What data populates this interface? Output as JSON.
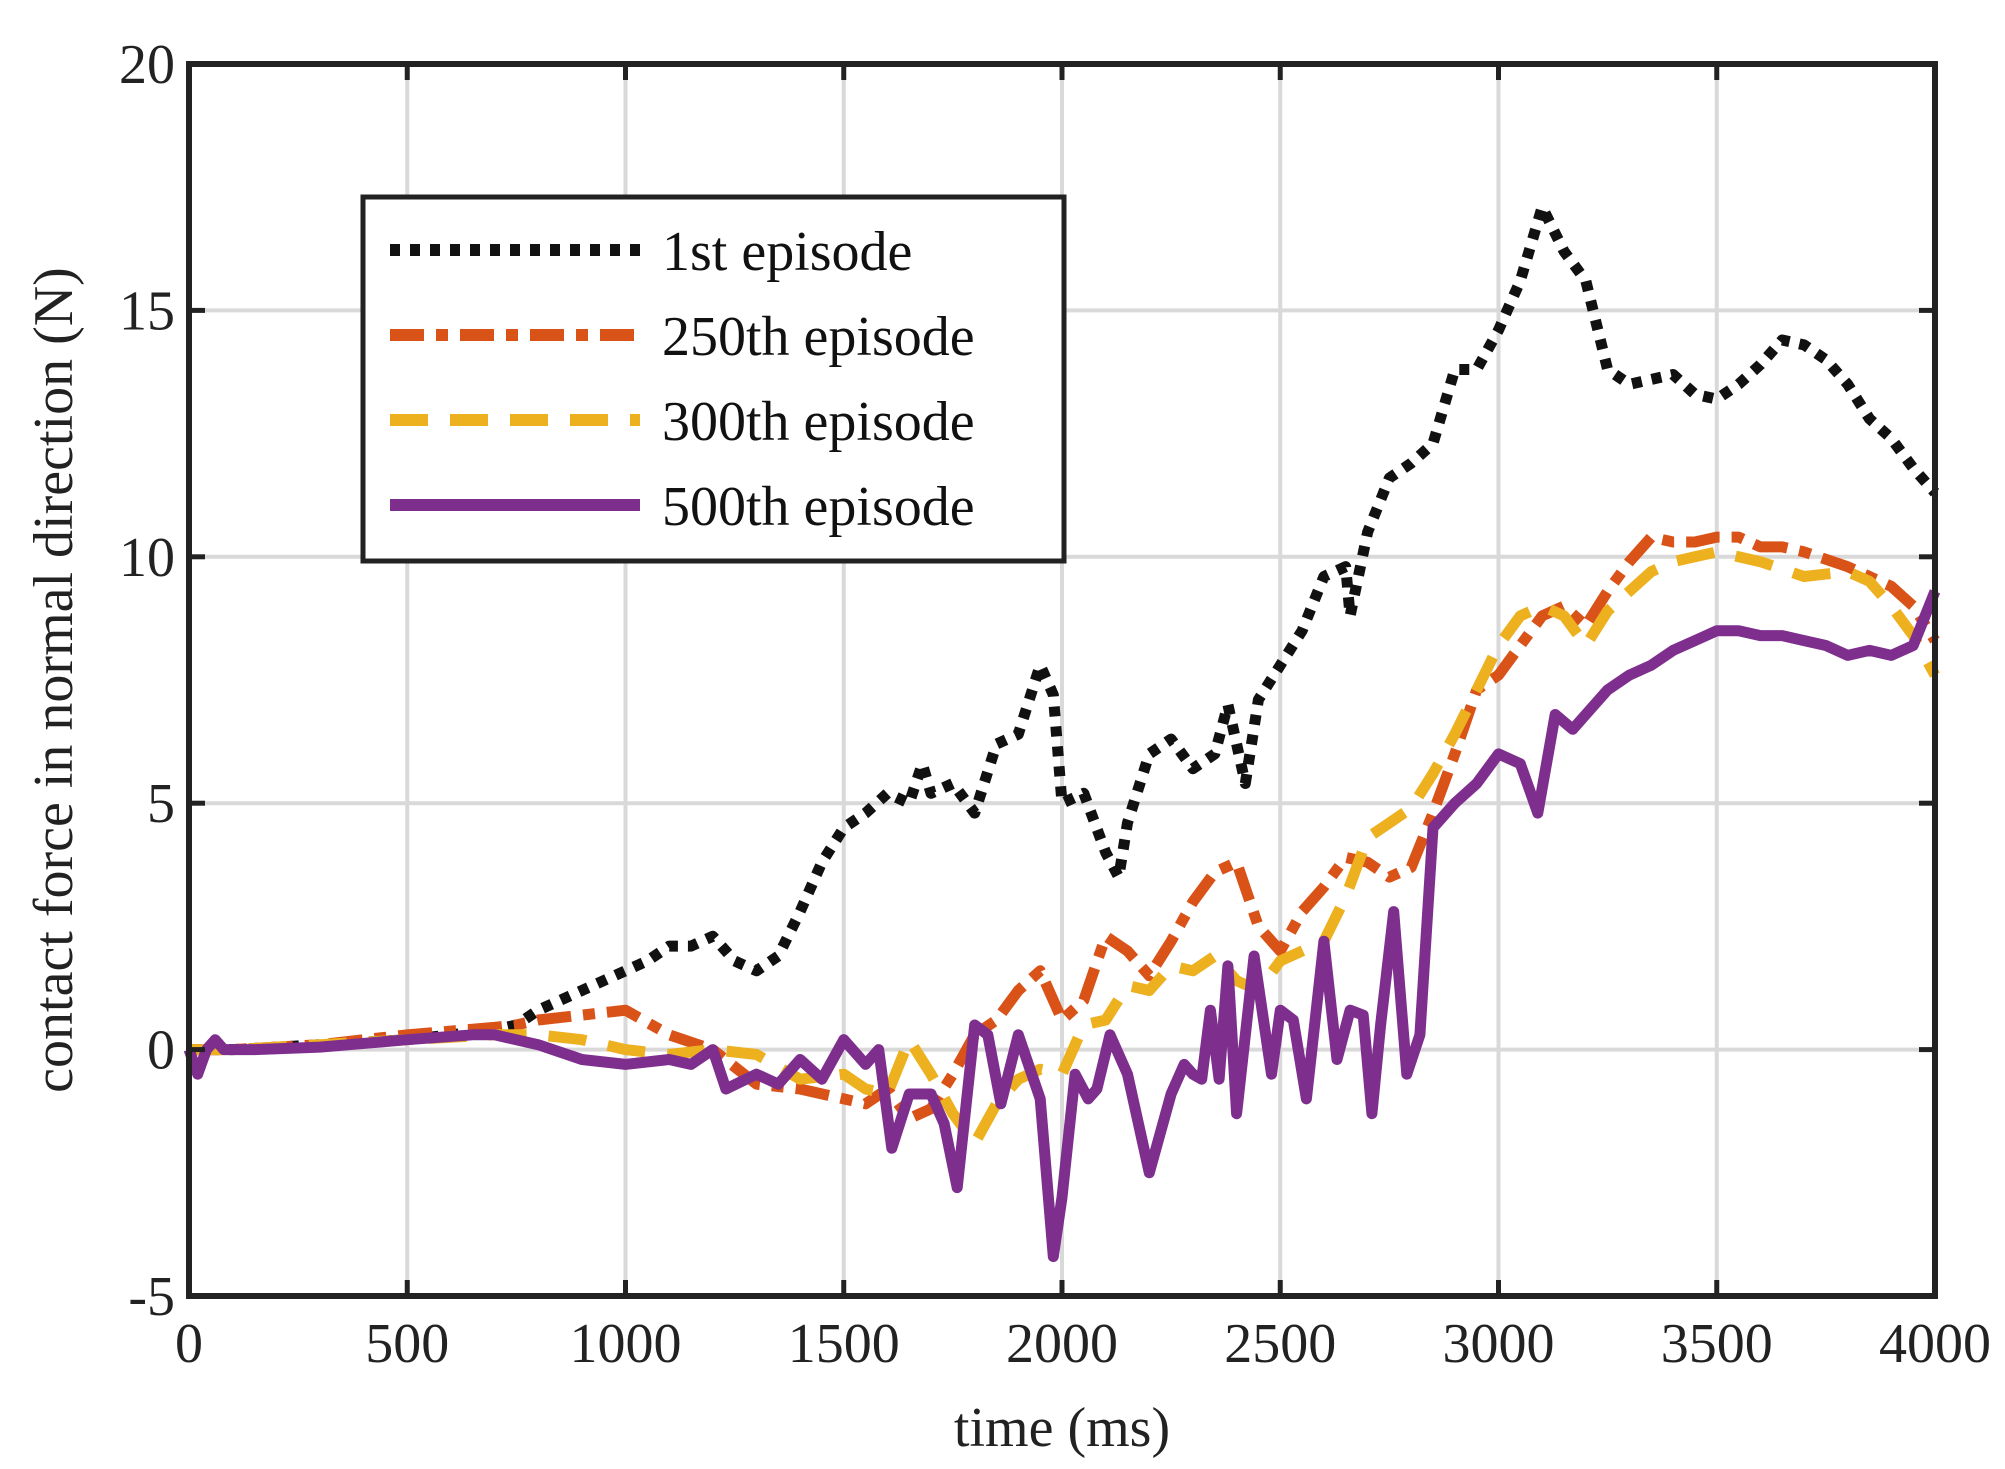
{
  "chart_data": {
    "type": "line",
    "title": "",
    "xlabel": "time (ms)",
    "ylabel": "contact force in normal direction (N)",
    "xlim": [
      0,
      4000
    ],
    "ylim": [
      -5,
      20
    ],
    "grid": true,
    "legend_position": "top-left",
    "x_ticks": [
      0,
      500,
      1000,
      1500,
      2000,
      2500,
      3000,
      3500,
      4000
    ],
    "y_ticks": [
      -5,
      0,
      5,
      10,
      15,
      20
    ],
    "x_tick_labels": [
      "0",
      "500",
      "1000",
      "1500",
      "2000",
      "2500",
      "3000",
      "3500",
      "4000"
    ],
    "y_tick_labels": [
      "-5",
      "0",
      "5",
      "10",
      "15",
      "20"
    ],
    "series": [
      {
        "name": "1st episode",
        "color": "#111111",
        "style": "dotted",
        "points": [
          [
            0,
            0
          ],
          [
            100,
            0
          ],
          [
            300,
            0.1
          ],
          [
            500,
            0.2
          ],
          [
            700,
            0.4
          ],
          [
            750,
            0.5
          ],
          [
            800,
            0.8
          ],
          [
            900,
            1.2
          ],
          [
            1000,
            1.6
          ],
          [
            1050,
            1.8
          ],
          [
            1100,
            2.1
          ],
          [
            1150,
            2.1
          ],
          [
            1200,
            2.3
          ],
          [
            1250,
            1.8
          ],
          [
            1300,
            1.6
          ],
          [
            1350,
            1.9
          ],
          [
            1400,
            2.8
          ],
          [
            1450,
            3.8
          ],
          [
            1500,
            4.5
          ],
          [
            1550,
            4.8
          ],
          [
            1600,
            5.2
          ],
          [
            1650,
            5.0
          ],
          [
            1680,
            5.8
          ],
          [
            1700,
            5.2
          ],
          [
            1750,
            5.4
          ],
          [
            1800,
            4.8
          ],
          [
            1850,
            6.2
          ],
          [
            1900,
            6.4
          ],
          [
            1950,
            7.8
          ],
          [
            1980,
            7.2
          ],
          [
            2000,
            5.0
          ],
          [
            2050,
            5.2
          ],
          [
            2100,
            4.0
          ],
          [
            2130,
            3.5
          ],
          [
            2150,
            4.6
          ],
          [
            2200,
            6.0
          ],
          [
            2250,
            6.3
          ],
          [
            2300,
            5.7
          ],
          [
            2350,
            6.0
          ],
          [
            2380,
            7.0
          ],
          [
            2420,
            5.4
          ],
          [
            2450,
            7.1
          ],
          [
            2500,
            7.8
          ],
          [
            2550,
            8.5
          ],
          [
            2600,
            9.6
          ],
          [
            2650,
            9.8
          ],
          [
            2660,
            8.8
          ],
          [
            2700,
            10.5
          ],
          [
            2750,
            11.6
          ],
          [
            2800,
            11.9
          ],
          [
            2850,
            12.3
          ],
          [
            2880,
            13.2
          ],
          [
            2900,
            13.8
          ],
          [
            2950,
            13.8
          ],
          [
            3000,
            14.6
          ],
          [
            3050,
            15.6
          ],
          [
            3100,
            17.1
          ],
          [
            3150,
            16.2
          ],
          [
            3200,
            15.6
          ],
          [
            3250,
            13.8
          ],
          [
            3300,
            13.5
          ],
          [
            3350,
            13.6
          ],
          [
            3400,
            13.7
          ],
          [
            3450,
            13.3
          ],
          [
            3500,
            13.2
          ],
          [
            3550,
            13.5
          ],
          [
            3600,
            13.9
          ],
          [
            3650,
            14.4
          ],
          [
            3700,
            14.3
          ],
          [
            3750,
            14.0
          ],
          [
            3800,
            13.5
          ],
          [
            3850,
            12.8
          ],
          [
            3900,
            12.4
          ],
          [
            3950,
            11.8
          ],
          [
            4000,
            11.3
          ]
        ]
      },
      {
        "name": "250th episode",
        "color": "#d95319",
        "style": "dashdot",
        "points": [
          [
            0,
            0
          ],
          [
            100,
            0
          ],
          [
            300,
            0.1
          ],
          [
            500,
            0.3
          ],
          [
            700,
            0.45
          ],
          [
            750,
            0.5
          ],
          [
            800,
            0.6
          ],
          [
            900,
            0.7
          ],
          [
            1000,
            0.8
          ],
          [
            1100,
            0.3
          ],
          [
            1200,
            0.0
          ],
          [
            1300,
            -0.7
          ],
          [
            1400,
            -0.8
          ],
          [
            1500,
            -1.0
          ],
          [
            1550,
            -1.1
          ],
          [
            1600,
            -0.8
          ],
          [
            1650,
            -1.4
          ],
          [
            1700,
            -1.2
          ],
          [
            1750,
            -0.5
          ],
          [
            1800,
            0.3
          ],
          [
            1850,
            0.6
          ],
          [
            1900,
            1.2
          ],
          [
            1950,
            1.6
          ],
          [
            2000,
            0.6
          ],
          [
            2050,
            1.0
          ],
          [
            2100,
            2.3
          ],
          [
            2150,
            2.0
          ],
          [
            2200,
            1.5
          ],
          [
            2250,
            2.2
          ],
          [
            2300,
            3.0
          ],
          [
            2350,
            3.6
          ],
          [
            2400,
            3.8
          ],
          [
            2450,
            2.5
          ],
          [
            2500,
            2.0
          ],
          [
            2550,
            2.8
          ],
          [
            2600,
            3.3
          ],
          [
            2650,
            3.9
          ],
          [
            2700,
            3.8
          ],
          [
            2750,
            3.5
          ],
          [
            2800,
            3.7
          ],
          [
            2850,
            4.8
          ],
          [
            2900,
            6.0
          ],
          [
            2950,
            7.3
          ],
          [
            3000,
            7.6
          ],
          [
            3050,
            8.2
          ],
          [
            3100,
            8.8
          ],
          [
            3150,
            9.0
          ],
          [
            3200,
            8.6
          ],
          [
            3250,
            9.3
          ],
          [
            3300,
            9.9
          ],
          [
            3350,
            10.4
          ],
          [
            3400,
            10.3
          ],
          [
            3450,
            10.3
          ],
          [
            3500,
            10.4
          ],
          [
            3550,
            10.4
          ],
          [
            3600,
            10.2
          ],
          [
            3650,
            10.2
          ],
          [
            3700,
            10.1
          ],
          [
            3800,
            9.8
          ],
          [
            3900,
            9.4
          ],
          [
            3950,
            9.0
          ],
          [
            4000,
            8.3
          ]
        ]
      },
      {
        "name": "300th episode",
        "color": "#edb120",
        "style": "dashed",
        "points": [
          [
            0,
            0
          ],
          [
            100,
            0
          ],
          [
            300,
            0.1
          ],
          [
            500,
            0.2
          ],
          [
            700,
            0.3
          ],
          [
            800,
            0.3
          ],
          [
            900,
            0.2
          ],
          [
            1000,
            0.0
          ],
          [
            1100,
            -0.1
          ],
          [
            1200,
            0.0
          ],
          [
            1300,
            -0.1
          ],
          [
            1400,
            -0.6
          ],
          [
            1500,
            -0.5
          ],
          [
            1550,
            -0.8
          ],
          [
            1600,
            -0.9
          ],
          [
            1650,
            0.2
          ],
          [
            1700,
            -0.5
          ],
          [
            1750,
            -1.3
          ],
          [
            1800,
            -1.9
          ],
          [
            1850,
            -1.1
          ],
          [
            1900,
            -0.6
          ],
          [
            1950,
            -0.4
          ],
          [
            2000,
            -0.5
          ],
          [
            2050,
            0.5
          ],
          [
            2100,
            0.6
          ],
          [
            2150,
            1.3
          ],
          [
            2200,
            1.2
          ],
          [
            2250,
            1.7
          ],
          [
            2300,
            1.6
          ],
          [
            2350,
            1.9
          ],
          [
            2400,
            1.4
          ],
          [
            2450,
            1.2
          ],
          [
            2500,
            1.8
          ],
          [
            2550,
            2.0
          ],
          [
            2600,
            2.2
          ],
          [
            2650,
            3.1
          ],
          [
            2700,
            4.3
          ],
          [
            2750,
            4.6
          ],
          [
            2800,
            4.9
          ],
          [
            2850,
            5.6
          ],
          [
            2900,
            6.4
          ],
          [
            2950,
            7.3
          ],
          [
            3000,
            8.2
          ],
          [
            3050,
            8.8
          ],
          [
            3100,
            9.0
          ],
          [
            3150,
            8.8
          ],
          [
            3200,
            8.2
          ],
          [
            3250,
            8.9
          ],
          [
            3300,
            9.3
          ],
          [
            3350,
            9.7
          ],
          [
            3400,
            9.9
          ],
          [
            3450,
            10.0
          ],
          [
            3500,
            10.1
          ],
          [
            3550,
            10.0
          ],
          [
            3600,
            9.9
          ],
          [
            3700,
            9.6
          ],
          [
            3800,
            9.7
          ],
          [
            3850,
            9.5
          ],
          [
            3900,
            9.0
          ],
          [
            3950,
            8.4
          ],
          [
            4000,
            7.6
          ]
        ]
      },
      {
        "name": "500th episode",
        "color": "#7e2f8e",
        "style": "solid",
        "points": [
          [
            0,
            0
          ],
          [
            20,
            -0.5
          ],
          [
            40,
            0
          ],
          [
            60,
            0.2
          ],
          [
            80,
            0
          ],
          [
            150,
            0
          ],
          [
            300,
            0.05
          ],
          [
            500,
            0.2
          ],
          [
            650,
            0.3
          ],
          [
            700,
            0.3
          ],
          [
            800,
            0.1
          ],
          [
            900,
            -0.2
          ],
          [
            1000,
            -0.3
          ],
          [
            1100,
            -0.2
          ],
          [
            1150,
            -0.3
          ],
          [
            1200,
            0.0
          ],
          [
            1230,
            -0.8
          ],
          [
            1300,
            -0.5
          ],
          [
            1350,
            -0.7
          ],
          [
            1400,
            -0.2
          ],
          [
            1450,
            -0.6
          ],
          [
            1500,
            0.2
          ],
          [
            1550,
            -0.3
          ],
          [
            1580,
            0.0
          ],
          [
            1610,
            -2.0
          ],
          [
            1650,
            -0.9
          ],
          [
            1700,
            -0.9
          ],
          [
            1730,
            -1.5
          ],
          [
            1760,
            -2.8
          ],
          [
            1800,
            0.5
          ],
          [
            1830,
            0.3
          ],
          [
            1860,
            -1.1
          ],
          [
            1900,
            0.3
          ],
          [
            1950,
            -1.0
          ],
          [
            1980,
            -4.2
          ],
          [
            2000,
            -3.0
          ],
          [
            2030,
            -0.5
          ],
          [
            2060,
            -1.0
          ],
          [
            2080,
            -0.8
          ],
          [
            2110,
            0.3
          ],
          [
            2150,
            -0.5
          ],
          [
            2200,
            -2.5
          ],
          [
            2250,
            -0.9
          ],
          [
            2280,
            -0.3
          ],
          [
            2300,
            -0.5
          ],
          [
            2320,
            -0.6
          ],
          [
            2340,
            0.8
          ],
          [
            2360,
            -0.6
          ],
          [
            2380,
            1.7
          ],
          [
            2400,
            -1.3
          ],
          [
            2440,
            1.9
          ],
          [
            2480,
            -0.5
          ],
          [
            2500,
            0.8
          ],
          [
            2530,
            0.6
          ],
          [
            2560,
            -1.0
          ],
          [
            2600,
            2.2
          ],
          [
            2630,
            -0.2
          ],
          [
            2660,
            0.8
          ],
          [
            2690,
            0.7
          ],
          [
            2710,
            -1.3
          ],
          [
            2730,
            0.5
          ],
          [
            2760,
            2.8
          ],
          [
            2790,
            -0.5
          ],
          [
            2820,
            0.3
          ],
          [
            2850,
            4.5
          ],
          [
            2900,
            5.0
          ],
          [
            2950,
            5.4
          ],
          [
            3000,
            6.0
          ],
          [
            3050,
            5.8
          ],
          [
            3090,
            4.8
          ],
          [
            3130,
            6.8
          ],
          [
            3170,
            6.5
          ],
          [
            3200,
            6.8
          ],
          [
            3250,
            7.3
          ],
          [
            3300,
            7.6
          ],
          [
            3350,
            7.8
          ],
          [
            3400,
            8.1
          ],
          [
            3450,
            8.3
          ],
          [
            3500,
            8.5
          ],
          [
            3550,
            8.5
          ],
          [
            3600,
            8.4
          ],
          [
            3650,
            8.4
          ],
          [
            3700,
            8.3
          ],
          [
            3750,
            8.2
          ],
          [
            3800,
            8.0
          ],
          [
            3850,
            8.1
          ],
          [
            3900,
            8.0
          ],
          [
            3950,
            8.2
          ],
          [
            4000,
            9.3
          ]
        ]
      }
    ]
  }
}
